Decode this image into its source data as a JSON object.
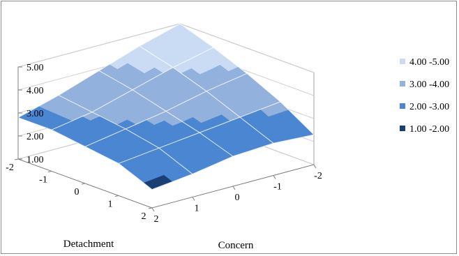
{
  "chart_data": {
    "type": "surface",
    "title": "",
    "xlabel": "Detachment",
    "ylabel": "Concern",
    "zlabel": "",
    "x_ticks": [
      "-2",
      "-1",
      "0",
      "1",
      "2"
    ],
    "y_ticks": [
      "-2",
      "-1",
      "0",
      "1",
      "2"
    ],
    "z_ticks": [
      "1.00",
      "2.00",
      "3.00",
      "4.00",
      "5.00"
    ],
    "zlim": [
      1,
      5
    ],
    "x": [
      -2,
      -1,
      0,
      1,
      2
    ],
    "y": [
      -2,
      -1,
      0,
      1,
      2
    ],
    "z_rows_by_detachment": [
      [
        5.0,
        4.5,
        3.9,
        3.3,
        2.8
      ],
      [
        4.5,
        4.1,
        3.6,
        3.1,
        2.8
      ],
      [
        3.9,
        3.6,
        3.2,
        2.9,
        2.6
      ],
      [
        3.2,
        3.0,
        2.8,
        2.6,
        2.4
      ],
      [
        2.3,
        2.4,
        2.3,
        2.0,
        1.8
      ]
    ],
    "legend": {
      "position": "right",
      "items": [
        {
          "label": "4.00 -5.00",
          "color": "#c9dcf3"
        },
        {
          "label": "3.00 -4.00",
          "color": "#92b1dc"
        },
        {
          "label": "2.00 -3.00",
          "color": "#4a86d1"
        },
        {
          "label": "1.00 -2.00",
          "color": "#1a3f74"
        }
      ]
    },
    "grid": true
  }
}
